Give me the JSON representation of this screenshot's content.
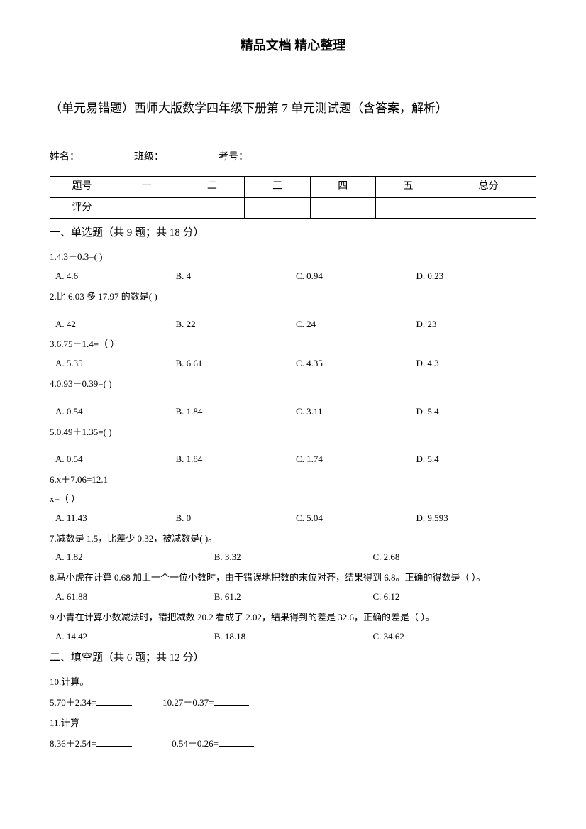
{
  "header": "精品文档 精心整理",
  "title": "（单元易错题）西师大版数学四年级下册第 7 单元测试题（含答案，解析）",
  "info": {
    "name_label": "姓名：",
    "class_label": "班级：",
    "exam_no_label": "考号："
  },
  "table": {
    "row1": [
      "题号",
      "一",
      "二",
      "三",
      "四",
      "五",
      "总分"
    ],
    "row2_label": "评分"
  },
  "section1": {
    "title": "一、单选题（共 9 题；共 18 分）",
    "q1": {
      "text": "1.4.3－0.3=(    )",
      "opts": [
        "A. 4.6",
        "B. 4",
        "C. 0.94",
        "D. 0.23"
      ]
    },
    "q2": {
      "text": "2.比 6.03 多 17.97 的数是(    )",
      "opts": [
        "A. 42",
        "B. 22",
        "C. 24",
        "D. 23"
      ]
    },
    "q3": {
      "text": "3.6.75－1.4=（   ）",
      "opts": [
        "A. 5.35",
        "B. 6.61",
        "C. 4.35",
        "D. 4.3"
      ]
    },
    "q4": {
      "text": "4.0.93－0.39=(    )",
      "opts": [
        "A. 0.54",
        "B. 1.84",
        "C. 3.11",
        "D. 5.4"
      ]
    },
    "q5": {
      "text": "5.0.49＋1.35=(    )",
      "opts": [
        "A. 0.54",
        "B. 1.84",
        "C. 1.74",
        "D. 5.4"
      ]
    },
    "q6": {
      "text": "6.x＋7.06=12.1",
      "text2": "x=（   ）",
      "opts": [
        "A. 11.43",
        "B. 0",
        "C. 5.04",
        "D. 9.593"
      ]
    },
    "q7": {
      "text": "7.减数是 1.5，比差少 0.32，被减数是(    )。",
      "opts": [
        "A. 1.82",
        "B. 3.32",
        "C. 2.68"
      ]
    },
    "q8": {
      "text": "8.马小虎在计算 0.68 加上一个一位小数时，由于错误地把数的末位对齐，结果得到 6.8。正确的得数是（   ）。",
      "opts": [
        "A. 61.88",
        "B. 61.2",
        "C. 6.12"
      ]
    },
    "q9": {
      "text": "9.小青在计算小数减法时，错把减数 20.2 看成了 2.02，结果得到的差是 32.6，正确的差是（   ）。",
      "opts": [
        "A. 14.42",
        "B. 18.18",
        "C. 34.62"
      ]
    }
  },
  "section2": {
    "title": "二、填空题（共 6 题；共 12 分）",
    "q10": {
      "text": "10.计算。",
      "calc1": "5.70＋2.34=",
      "calc2": "10.27－0.37="
    },
    "q11": {
      "text": "11.计算",
      "calc1": "8.36＋2.54=",
      "calc2": "0.54－0.26="
    }
  }
}
